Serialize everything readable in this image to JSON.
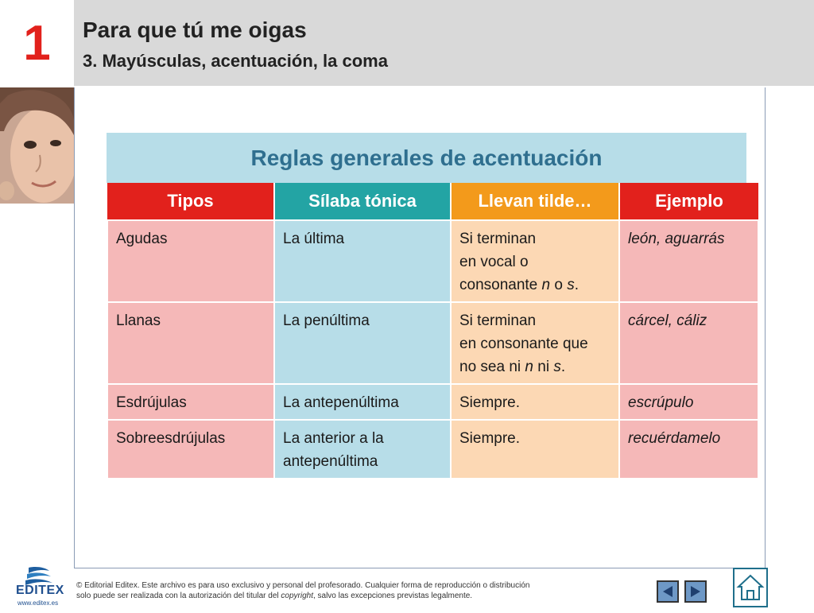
{
  "header": {
    "chapter_number": "1",
    "title": "Para que tú me oigas",
    "subtitle": "3. Mayúsculas, acentuación, la coma"
  },
  "table": {
    "title": "Reglas generales de acentuación",
    "columns": [
      "Tipos",
      "Sílaba tónica",
      "Llevan tilde…",
      "Ejemplo"
    ],
    "column_colors": [
      "#e2211c",
      "#23a4a4",
      "#f39a1b",
      "#e2211c"
    ],
    "rows": [
      {
        "tipo": "Agudas",
        "silaba": "La última",
        "tilde": [
          "Si terminan",
          "en vocal o",
          "consonante ",
          "n",
          " o ",
          "s",
          "."
        ],
        "ejemplo": "león, aguarrás"
      },
      {
        "tipo": "Llanas",
        "silaba": "La penúltima",
        "tilde": [
          "Si terminan",
          "en consonante que",
          "no sea ni ",
          "n",
          " ni ",
          "s",
          "."
        ],
        "ejemplo": "cárcel, cáliz"
      },
      {
        "tipo": "Esdrújulas",
        "silaba": "La antepenúltima",
        "tilde": [
          "Siempre."
        ],
        "ejemplo": "escrúpulo"
      },
      {
        "tipo": "Sobreesdrújulas",
        "silaba": [
          "La anterior a la",
          "antepenúltima"
        ],
        "tilde": [
          "Siempre."
        ],
        "ejemplo": "recuérdamelo"
      }
    ]
  },
  "footer": {
    "logo_text": "EDITEX",
    "logo_url": "www.editex.es",
    "copyright_line1": "© Editorial Editex. Este archivo es para uso exclusivo y personal del profesorado. Cualquier forma de reproducción o distribución",
    "copyright_line2_a": "solo puede ser realizada con la autorización del titular del ",
    "copyright_line2_em": "copyright",
    "copyright_line2_b": ", salvo las excepciones previstas legalmente."
  }
}
